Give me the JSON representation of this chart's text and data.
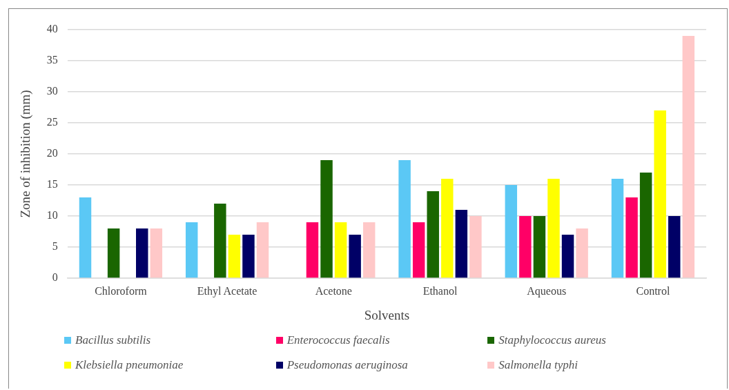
{
  "chart_data": {
    "type": "bar",
    "xlabel": "Solvents",
    "ylabel": "Zone of inhibition (mm)",
    "categories": [
      "Chloroform",
      "Ethyl Acetate",
      "Acetone",
      "Ethanol",
      "Aqueous",
      "Control"
    ],
    "series": [
      {
        "name": "Bacillus subtilis",
        "color": "#5bc8f5",
        "values": [
          13,
          9,
          0,
          19,
          15,
          16
        ]
      },
      {
        "name": "Enterococcus faecalis",
        "color": "#ff0066",
        "values": [
          0,
          0,
          9,
          9,
          10,
          13
        ]
      },
      {
        "name": "Staphylococcus aureus",
        "color": "#1a6600",
        "values": [
          8,
          12,
          19,
          14,
          10,
          17
        ]
      },
      {
        "name": "Klebsiella pneumoniae",
        "color": "#ffff00",
        "values": [
          0,
          7,
          9,
          16,
          16,
          27
        ]
      },
      {
        "name": "Pseudomonas aeruginosa",
        "color": "#000066",
        "values": [
          8,
          7,
          7,
          11,
          7,
          10
        ]
      },
      {
        "name": "Salmonella typhi",
        "color": "#ffc8c8",
        "values": [
          8,
          9,
          9,
          10,
          8,
          39
        ]
      }
    ],
    "ylim": [
      0,
      40
    ],
    "yticks": [
      0,
      5,
      10,
      15,
      20,
      25,
      30,
      35,
      40
    ],
    "grid": "y",
    "legend": "bottom"
  }
}
